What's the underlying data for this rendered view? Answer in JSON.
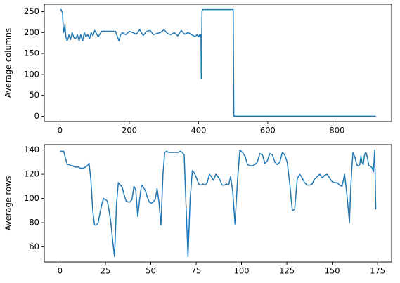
{
  "chart_data": [
    {
      "type": "line",
      "ylabel": "Average columns",
      "color": "#1f77b4",
      "xlim": [
        -45.6,
        957.6
      ],
      "ylim": [
        -12.75,
        267.75
      ],
      "xticks": [
        0,
        200,
        400,
        600,
        800
      ],
      "yticks": [
        0,
        50,
        100,
        150,
        200,
        250
      ],
      "x": [
        0,
        3,
        5,
        7,
        8,
        10,
        12,
        14,
        15,
        17,
        20,
        23,
        26,
        30,
        35,
        40,
        45,
        50,
        55,
        60,
        65,
        70,
        75,
        80,
        85,
        90,
        95,
        100,
        110,
        120,
        130,
        140,
        150,
        160,
        170,
        175,
        180,
        190,
        200,
        210,
        220,
        230,
        240,
        250,
        260,
        270,
        280,
        290,
        300,
        310,
        320,
        330,
        340,
        350,
        360,
        370,
        380,
        390,
        395,
        400,
        403,
        405,
        407,
        408,
        410,
        412,
        415,
        450,
        500,
        502,
        503,
        912
      ],
      "values": [
        255,
        255,
        250,
        250,
        230,
        200,
        205,
        220,
        205,
        190,
        180,
        185,
        195,
        183,
        200,
        188,
        185,
        195,
        180,
        195,
        180,
        200,
        190,
        195,
        185,
        200,
        192,
        205,
        190,
        203,
        203,
        203,
        203,
        203,
        180,
        195,
        200,
        195,
        203,
        200,
        196,
        207,
        193,
        203,
        205,
        195,
        198,
        200,
        207,
        198,
        195,
        200,
        192,
        205,
        196,
        200,
        195,
        190,
        195,
        190,
        195,
        188,
        195,
        90,
        250,
        255,
        255,
        255,
        255,
        0,
        0,
        0
      ]
    },
    {
      "type": "line",
      "ylabel": "Average rows",
      "color": "#1f77b4",
      "xlim": [
        -8.7,
        182.7
      ],
      "ylim": [
        47.6,
        144.4
      ],
      "xticks": [
        0,
        25,
        50,
        75,
        100,
        125,
        150,
        175
      ],
      "yticks": [
        60,
        80,
        100,
        120,
        140
      ],
      "x": [
        0,
        1,
        2,
        3,
        4,
        5,
        6,
        7,
        8,
        9,
        10,
        11,
        12,
        13,
        14,
        15,
        16,
        17,
        18,
        19,
        20,
        21,
        22,
        23,
        24,
        25,
        26,
        27,
        28,
        29,
        30,
        31.1,
        32.1,
        33.2,
        34.3,
        35.3,
        36.4,
        37.5,
        38.5,
        39.6,
        40.7,
        41.7,
        42.8,
        43.9,
        44.9,
        46.0,
        47.1,
        48.1,
        49.2,
        50.3,
        51.3,
        52.4,
        53.5,
        54.5,
        55.6,
        56.7,
        57.7,
        58.8,
        59.8,
        60.9,
        62.0,
        63.0,
        64.1,
        65.2,
        66.2,
        67.3,
        68.4,
        69.4,
        70.5,
        71.7,
        72.9,
        74.0,
        75.2,
        76.4,
        77.6,
        78.7,
        79.9,
        81.1,
        82.3,
        83.4,
        84.6,
        85.8,
        87.0,
        88.2,
        89.3,
        90.5,
        91.7,
        92.9,
        94.0,
        95.2,
        96.4,
        97.8,
        99.1,
        100.5,
        101.9,
        103.3,
        104.6,
        106.0,
        107.4,
        108.7,
        110.1,
        111.5,
        112.9,
        114.2,
        115.6,
        117.0,
        118.4,
        119.7,
        121.1,
        122.5,
        123.8,
        125.2,
        126.6,
        128.0,
        129.3,
        130.7,
        132.1,
        133.4,
        134.8,
        136.2,
        137.6,
        138.9,
        140.3,
        141.7,
        143.1,
        144.4,
        145.8,
        147.2,
        148.5,
        149.9,
        151.3,
        152.7,
        154.0,
        155.4,
        156.8,
        158.1,
        159.5,
        160.1,
        160.8,
        161.4,
        162.0,
        162.7,
        163.3,
        163.9,
        164.5,
        165.2,
        165.8,
        166.4,
        167.1,
        167.7,
        168.3,
        168.9,
        169.6,
        170.2,
        170.8,
        171.5,
        172.1,
        172.7,
        173.4,
        174.0
      ],
      "values": [
        139,
        139,
        139,
        133,
        128,
        128,
        127,
        127,
        126,
        126,
        126,
        125,
        125,
        125,
        126,
        127,
        129,
        115,
        90,
        78,
        78,
        80,
        88,
        95,
        100,
        99,
        98,
        90,
        80,
        65,
        52,
        95,
        113,
        111,
        109,
        103,
        98,
        97,
        97,
        99,
        110,
        107,
        85,
        100,
        111,
        109,
        106,
        101,
        97,
        96,
        97,
        99,
        108,
        97,
        78,
        120,
        138,
        139,
        138,
        138,
        138,
        138,
        138,
        138,
        139,
        138,
        136,
        95,
        52,
        100,
        123,
        121,
        117,
        112,
        111,
        112,
        111,
        113,
        120,
        118,
        115,
        120,
        118,
        115,
        111,
        111,
        112,
        111,
        118,
        105,
        79,
        115,
        140,
        138,
        135,
        128,
        127,
        127,
        128,
        130,
        137,
        136,
        129,
        131,
        137,
        136,
        130,
        128,
        130,
        138,
        136,
        130,
        112,
        90,
        91,
        116,
        120,
        117,
        113,
        111,
        111,
        112,
        116,
        118,
        120,
        117,
        119,
        120,
        117,
        114,
        113,
        113,
        111,
        110,
        120,
        103,
        80,
        105,
        125,
        138,
        136,
        133,
        129,
        127,
        127,
        128,
        135,
        130,
        128,
        135,
        138,
        137,
        132,
        127,
        127,
        126,
        125,
        122,
        140,
        91
      ]
    }
  ]
}
